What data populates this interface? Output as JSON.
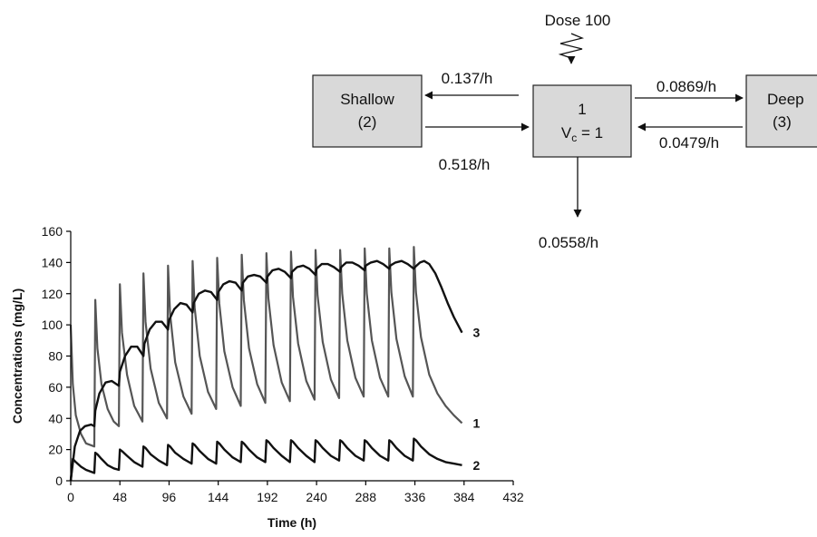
{
  "diagram": {
    "dose_label": "Dose 100",
    "central": {
      "line1": "1",
      "line2_main": "V",
      "line2_sub": "c",
      "line2_rest": " = 1"
    },
    "shallow": {
      "line1": "Shallow",
      "line2": "(2)"
    },
    "deep": {
      "line1": "Deep",
      "line2": "(3)"
    },
    "rates": {
      "central_to_shallow": "0.137/h",
      "shallow_to_central": "0.518/h",
      "central_to_deep": "0.0869/h",
      "deep_to_central": "0.0479/h",
      "elimination": "0.0558/h"
    }
  },
  "chart_data": {
    "type": "line",
    "xlabel": "Time (h)",
    "ylabel": "Concentrations (mg/L)",
    "xlim": [
      0,
      432
    ],
    "ylim": [
      0,
      160
    ],
    "xticks": [
      0,
      48,
      96,
      144,
      192,
      240,
      288,
      336,
      384,
      432
    ],
    "yticks": [
      0,
      20,
      40,
      60,
      80,
      100,
      120,
      140,
      160
    ],
    "series": [
      {
        "name": "1",
        "points": [
          [
            0,
            100
          ],
          [
            2,
            62
          ],
          [
            5,
            42
          ],
          [
            10,
            30
          ],
          [
            15,
            24
          ],
          [
            23,
            22
          ],
          [
            24,
            116
          ],
          [
            26,
            85
          ],
          [
            30,
            62
          ],
          [
            36,
            46
          ],
          [
            42,
            38
          ],
          [
            47,
            35
          ],
          [
            48,
            126
          ],
          [
            50,
            95
          ],
          [
            55,
            68
          ],
          [
            62,
            48
          ],
          [
            70,
            38
          ],
          [
            71,
            133
          ],
          [
            73,
            102
          ],
          [
            78,
            72
          ],
          [
            86,
            50
          ],
          [
            94,
            40
          ],
          [
            95,
            138
          ],
          [
            97,
            107
          ],
          [
            102,
            76
          ],
          [
            110,
            54
          ],
          [
            118,
            43
          ],
          [
            119,
            141
          ],
          [
            121,
            111
          ],
          [
            126,
            80
          ],
          [
            134,
            57
          ],
          [
            142,
            46
          ],
          [
            143,
            143
          ],
          [
            145,
            114
          ],
          [
            150,
            83
          ],
          [
            158,
            60
          ],
          [
            166,
            48
          ],
          [
            167,
            145
          ],
          [
            169,
            116
          ],
          [
            174,
            85
          ],
          [
            182,
            62
          ],
          [
            190,
            50
          ],
          [
            191,
            146
          ],
          [
            193,
            117
          ],
          [
            198,
            87
          ],
          [
            206,
            63
          ],
          [
            214,
            51
          ],
          [
            215,
            147
          ],
          [
            217,
            118
          ],
          [
            222,
            88
          ],
          [
            230,
            64
          ],
          [
            238,
            52
          ],
          [
            239,
            148
          ],
          [
            241,
            119
          ],
          [
            246,
            89
          ],
          [
            254,
            65
          ],
          [
            262,
            53
          ],
          [
            263,
            148
          ],
          [
            265,
            120
          ],
          [
            270,
            90
          ],
          [
            278,
            66
          ],
          [
            286,
            54
          ],
          [
            287,
            149
          ],
          [
            289,
            120
          ],
          [
            294,
            90
          ],
          [
            302,
            66
          ],
          [
            310,
            54
          ],
          [
            311,
            149
          ],
          [
            313,
            121
          ],
          [
            318,
            91
          ],
          [
            326,
            67
          ],
          [
            334,
            54
          ],
          [
            335,
            150
          ],
          [
            337,
            121
          ],
          [
            342,
            92
          ],
          [
            350,
            68
          ],
          [
            358,
            56
          ],
          [
            366,
            48
          ],
          [
            374,
            42
          ],
          [
            382,
            37
          ]
        ]
      },
      {
        "name": "2",
        "points": [
          [
            0,
            0
          ],
          [
            2,
            14
          ],
          [
            5,
            12
          ],
          [
            10,
            9
          ],
          [
            15,
            7
          ],
          [
            23,
            5
          ],
          [
            24,
            18
          ],
          [
            26,
            17
          ],
          [
            30,
            14
          ],
          [
            36,
            10
          ],
          [
            42,
            8
          ],
          [
            47,
            7
          ],
          [
            48,
            20
          ],
          [
            50,
            19
          ],
          [
            55,
            16
          ],
          [
            62,
            12
          ],
          [
            70,
            9
          ],
          [
            71,
            22
          ],
          [
            73,
            21
          ],
          [
            78,
            17
          ],
          [
            86,
            13
          ],
          [
            94,
            10
          ],
          [
            95,
            23
          ],
          [
            97,
            22
          ],
          [
            102,
            18
          ],
          [
            110,
            14
          ],
          [
            118,
            11
          ],
          [
            119,
            24
          ],
          [
            121,
            23
          ],
          [
            126,
            19
          ],
          [
            134,
            14
          ],
          [
            142,
            11
          ],
          [
            143,
            25
          ],
          [
            145,
            24
          ],
          [
            150,
            20
          ],
          [
            158,
            15
          ],
          [
            166,
            12
          ],
          [
            167,
            25
          ],
          [
            169,
            24
          ],
          [
            174,
            20
          ],
          [
            182,
            15
          ],
          [
            190,
            12
          ],
          [
            191,
            26
          ],
          [
            193,
            25
          ],
          [
            198,
            21
          ],
          [
            206,
            16
          ],
          [
            214,
            12
          ],
          [
            215,
            26
          ],
          [
            217,
            25
          ],
          [
            222,
            21
          ],
          [
            230,
            16
          ],
          [
            238,
            12
          ],
          [
            239,
            26
          ],
          [
            241,
            25
          ],
          [
            246,
            21
          ],
          [
            254,
            16
          ],
          [
            262,
            13
          ],
          [
            263,
            26
          ],
          [
            265,
            25
          ],
          [
            270,
            21
          ],
          [
            278,
            16
          ],
          [
            286,
            13
          ],
          [
            287,
            26
          ],
          [
            289,
            25
          ],
          [
            294,
            21
          ],
          [
            302,
            16
          ],
          [
            310,
            13
          ],
          [
            311,
            26
          ],
          [
            313,
            25
          ],
          [
            318,
            21
          ],
          [
            326,
            16
          ],
          [
            334,
            13
          ],
          [
            335,
            27
          ],
          [
            337,
            26
          ],
          [
            342,
            22
          ],
          [
            350,
            17
          ],
          [
            358,
            14
          ],
          [
            366,
            12
          ],
          [
            374,
            11
          ],
          [
            382,
            10
          ]
        ]
      },
      {
        "name": "3",
        "points": [
          [
            0,
            0
          ],
          [
            4,
            22
          ],
          [
            9,
            32
          ],
          [
            14,
            35
          ],
          [
            20,
            36
          ],
          [
            23,
            35
          ],
          [
            24,
            45
          ],
          [
            28,
            56
          ],
          [
            34,
            63
          ],
          [
            40,
            64
          ],
          [
            47,
            61
          ],
          [
            48,
            70
          ],
          [
            53,
            80
          ],
          [
            59,
            86
          ],
          [
            65,
            86
          ],
          [
            71,
            80
          ],
          [
            72,
            88
          ],
          [
            77,
            97
          ],
          [
            83,
            102
          ],
          [
            89,
            102
          ],
          [
            95,
            97
          ],
          [
            96,
            103
          ],
          [
            101,
            110
          ],
          [
            107,
            114
          ],
          [
            113,
            113
          ],
          [
            119,
            108
          ],
          [
            120,
            114
          ],
          [
            125,
            120
          ],
          [
            131,
            122
          ],
          [
            137,
            121
          ],
          [
            143,
            116
          ],
          [
            144,
            121
          ],
          [
            149,
            126
          ],
          [
            155,
            128
          ],
          [
            161,
            127
          ],
          [
            167,
            122
          ],
          [
            168,
            127
          ],
          [
            173,
            131
          ],
          [
            179,
            132
          ],
          [
            185,
            131
          ],
          [
            191,
            127
          ],
          [
            192,
            131
          ],
          [
            197,
            135
          ],
          [
            203,
            136
          ],
          [
            209,
            134
          ],
          [
            215,
            130
          ],
          [
            216,
            134
          ],
          [
            221,
            137
          ],
          [
            227,
            138
          ],
          [
            233,
            136
          ],
          [
            239,
            132
          ],
          [
            240,
            136
          ],
          [
            245,
            139
          ],
          [
            251,
            139
          ],
          [
            257,
            137
          ],
          [
            263,
            134
          ],
          [
            264,
            137
          ],
          [
            269,
            140
          ],
          [
            275,
            140
          ],
          [
            281,
            138
          ],
          [
            287,
            135
          ],
          [
            288,
            138
          ],
          [
            293,
            140
          ],
          [
            299,
            141
          ],
          [
            305,
            139
          ],
          [
            311,
            136
          ],
          [
            312,
            138
          ],
          [
            317,
            140
          ],
          [
            323,
            141
          ],
          [
            329,
            139
          ],
          [
            335,
            136
          ],
          [
            336,
            137
          ],
          [
            341,
            140
          ],
          [
            345,
            141
          ],
          [
            350,
            139
          ],
          [
            356,
            133
          ],
          [
            362,
            124
          ],
          [
            368,
            114
          ],
          [
            374,
            105
          ],
          [
            382,
            95
          ]
        ]
      }
    ]
  }
}
